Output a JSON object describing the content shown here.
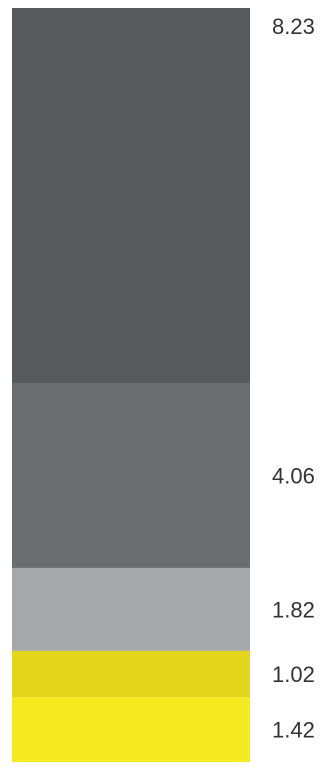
{
  "chart_data": {
    "type": "bar",
    "stacked": true,
    "segments": [
      {
        "label": "1.42",
        "value": 1.42,
        "color": "#f4ea1f"
      },
      {
        "label": "1.02",
        "value": 1.02,
        "color": "#e3d51c"
      },
      {
        "label": "1.82",
        "value": 1.82,
        "color": "#a7a8aa"
      },
      {
        "label": "4.06",
        "value": 4.06,
        "color": "#6b6c6e"
      },
      {
        "label": "8.23",
        "value": 8.23,
        "color": "#58595b",
        "label_at_boundary": true
      }
    ]
  }
}
